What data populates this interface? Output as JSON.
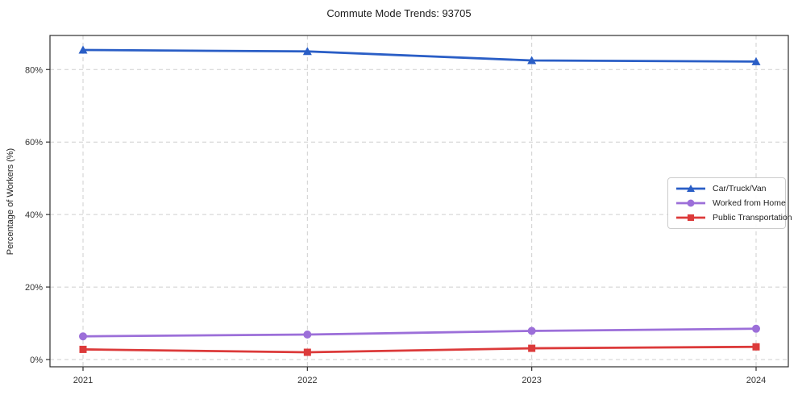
{
  "chart_data": {
    "type": "line",
    "title": "Commute Mode Trends: 93705",
    "xlabel": "",
    "ylabel": "Percentage of Workers (%)",
    "categories": [
      "2021",
      "2022",
      "2023",
      "2024"
    ],
    "series": [
      {
        "name": "Car/Truck/Van",
        "values": [
          85.4,
          85.0,
          82.5,
          82.2
        ],
        "color": "#2a5ec6",
        "marker": "triangle"
      },
      {
        "name": "Worked from Home",
        "values": [
          6.4,
          6.9,
          7.9,
          8.5
        ],
        "color": "#9c6fd9",
        "marker": "circle"
      },
      {
        "name": "Public Transportation",
        "values": [
          2.8,
          2.0,
          3.1,
          3.5
        ],
        "color": "#dc3a3a",
        "marker": "square"
      }
    ],
    "yticks": {
      "values": [
        0,
        20,
        40,
        60,
        80
      ],
      "labels": [
        "0%",
        "20%",
        "40%",
        "60%",
        "80%"
      ]
    },
    "ylim": [
      -2.0,
      89.4
    ],
    "grid": {
      "show": true,
      "style": "dashed",
      "color": "#cfcfcf"
    },
    "legend": {
      "position": "center-right"
    }
  },
  "figure": {
    "background": "#ffffff",
    "spine_color": "#2f2f2f",
    "tick_color": "#2f2f2f",
    "tick_label_color": "#333333"
  }
}
